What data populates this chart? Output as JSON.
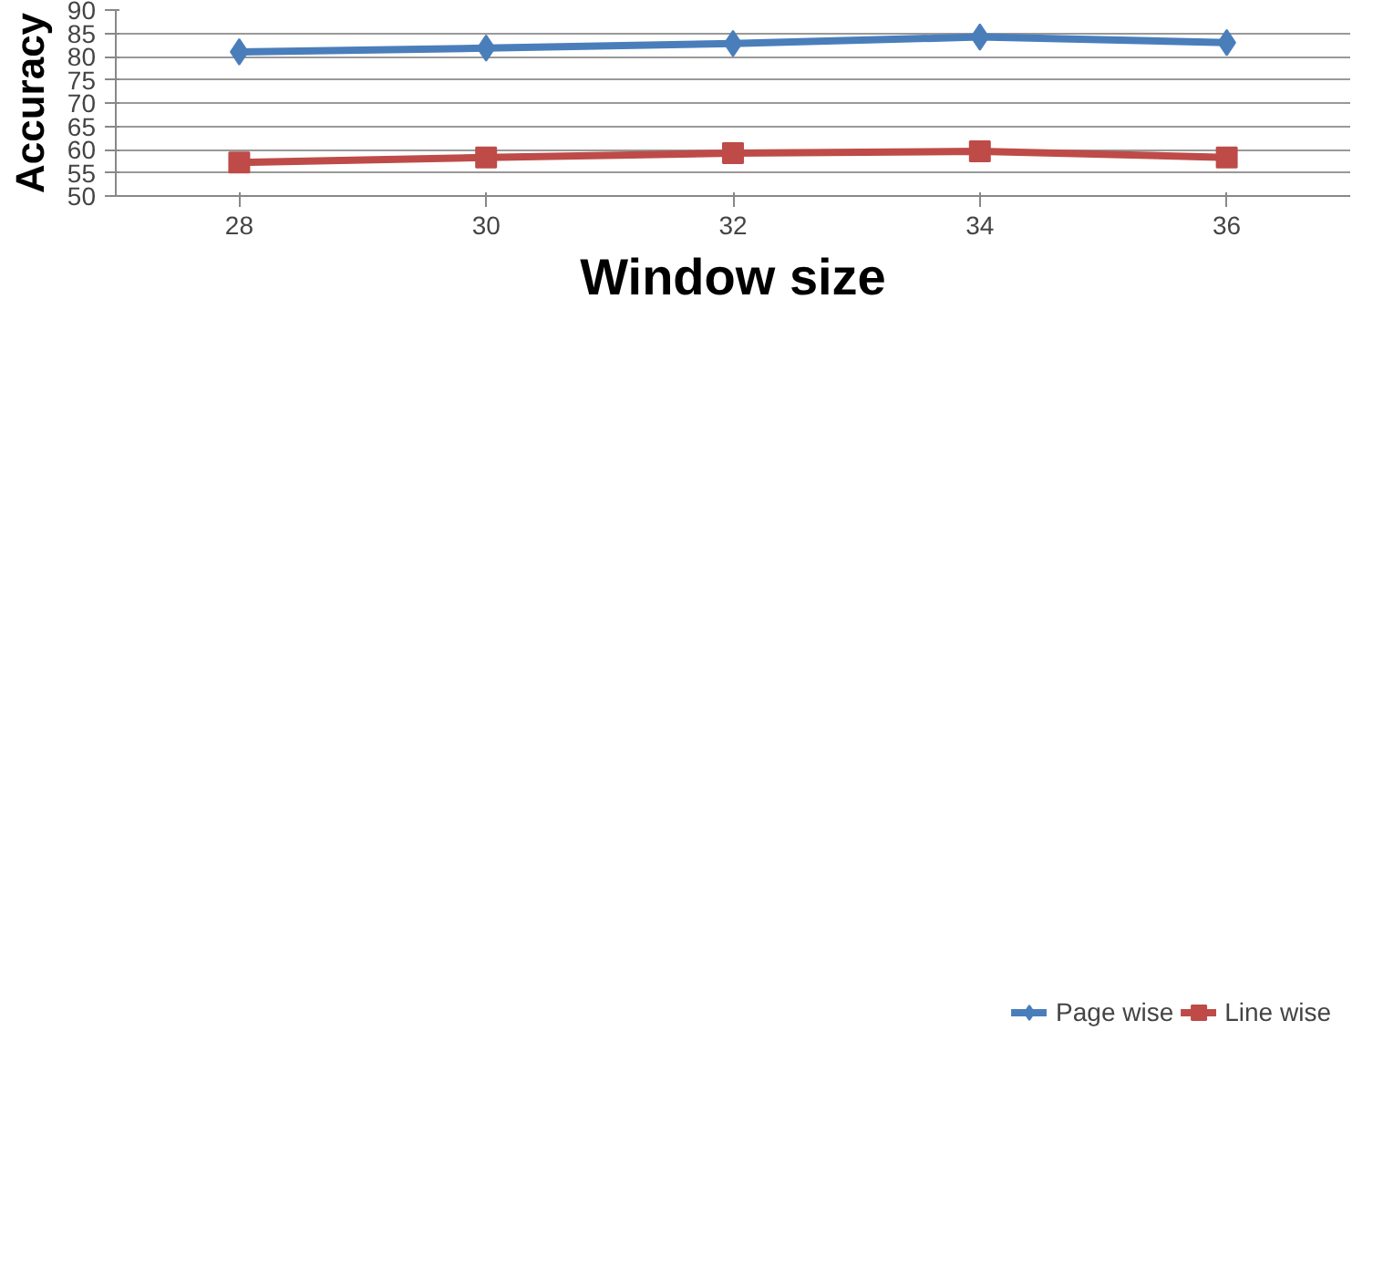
{
  "chart_data": {
    "type": "line",
    "xlabel": "Window size",
    "ylabel": "Accuracy",
    "categories": [
      "28",
      "30",
      "32",
      "34",
      "36"
    ],
    "series": [
      {
        "name": "Page wise",
        "color": "#4a7ebb",
        "marker": "diamond",
        "values": [
          81.0,
          81.8,
          82.8,
          84.2,
          83.0
        ]
      },
      {
        "name": "Line wise",
        "color": "#be4b48",
        "marker": "square",
        "values": [
          57.2,
          58.3,
          59.2,
          59.6,
          58.3
        ]
      }
    ],
    "ylim": [
      50,
      90
    ],
    "yticks": [
      50,
      55,
      60,
      65,
      70,
      75,
      80,
      85,
      90
    ],
    "grid": "y",
    "legend": "bottom right",
    "line_style": "solid"
  }
}
